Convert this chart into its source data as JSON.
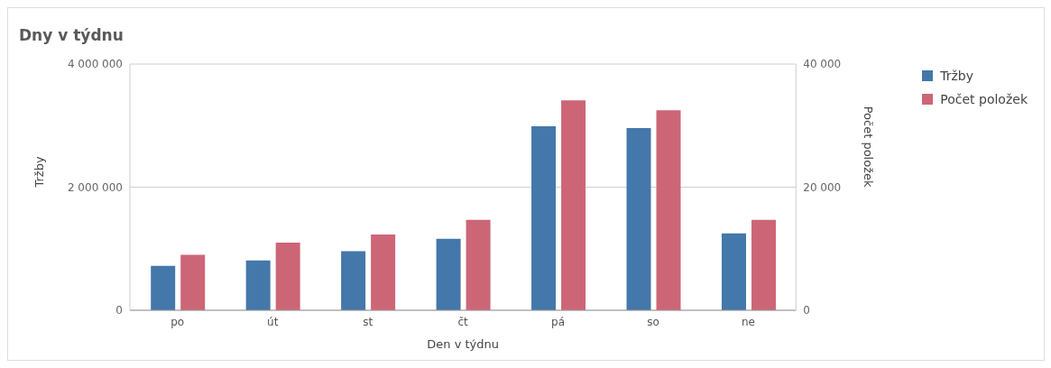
{
  "chart_data": {
    "type": "bar",
    "title": "Dny v týdnu",
    "xlabel": "Den v týdnu",
    "ylabel": "Tržby",
    "y2label": "Počet položek",
    "categories": [
      "po",
      "út",
      "st",
      "čt",
      "pá",
      "so",
      "ne"
    ],
    "series": [
      {
        "name": "Tržby",
        "color": "#4477aa",
        "values": [
          720000,
          810000,
          960000,
          1160000,
          2990000,
          2960000,
          1250000
        ]
      },
      {
        "name": "Počet položek",
        "color": "#cc6677",
        "axis": "y2",
        "values": [
          9000,
          11000,
          12300,
          14700,
          34100,
          32500,
          14700
        ]
      }
    ],
    "ylim": [
      0,
      4000000
    ],
    "yticks": [
      0,
      {
        "value": 2000000,
        "label": "2 000 000"
      },
      {
        "value": 4000000,
        "label": "4 000 000"
      }
    ],
    "y2lim": [
      0,
      40000
    ],
    "y2ticks": [
      0,
      {
        "value": 20000,
        "label": "20 000"
      },
      {
        "value": 40000,
        "label": "40 000"
      }
    ],
    "grid": "y",
    "legend": "top right"
  }
}
